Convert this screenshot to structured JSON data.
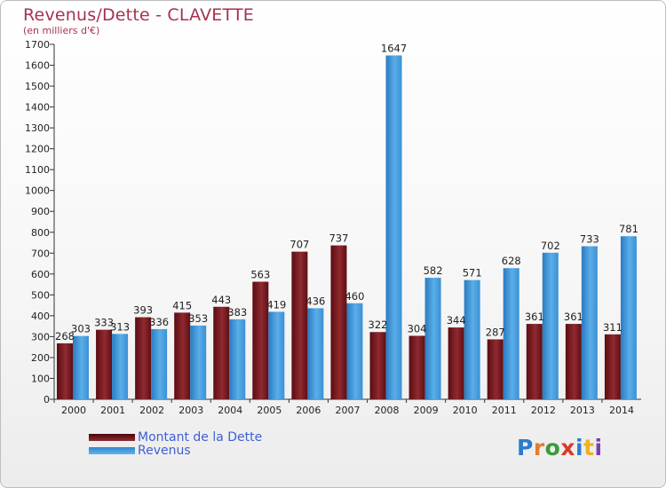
{
  "title": "Revenus/Dette - CLAVETTE",
  "subtitle": "(en milliers d'€)",
  "colors": {
    "dette": "#6b1016",
    "dette_light": "#a33a3f",
    "revenus": "#2f86cc",
    "revenus_light": "#63b4ec",
    "title": "#a6324f",
    "legend_text": "#3f5fd6"
  },
  "legend": {
    "dette": "Montant de la Dette",
    "revenus": "Revenus"
  },
  "logo": {
    "text": "Proxiti"
  },
  "chart_data": {
    "type": "bar",
    "title": "Revenus/Dette - CLAVETTE",
    "ylabel": "(en milliers d'€)",
    "xlabel": "",
    "ylim": [
      0,
      1700
    ],
    "ytick_step": 100,
    "grid": false,
    "legend_position": "bottom-left",
    "categories": [
      "2000",
      "2001",
      "2002",
      "2003",
      "2004",
      "2005",
      "2006",
      "2007",
      "2008",
      "2009",
      "2010",
      "2011",
      "2012",
      "2013",
      "2014"
    ],
    "series": [
      {
        "name": "Montant de la Dette",
        "values": [
          268,
          333,
          393,
          415,
          443,
          563,
          707,
          737,
          322,
          304,
          344,
          287,
          361,
          361,
          311
        ]
      },
      {
        "name": "Revenus",
        "values": [
          303,
          313,
          336,
          353,
          383,
          419,
          436,
          460,
          1647,
          582,
          571,
          628,
          702,
          733,
          781
        ]
      }
    ]
  }
}
